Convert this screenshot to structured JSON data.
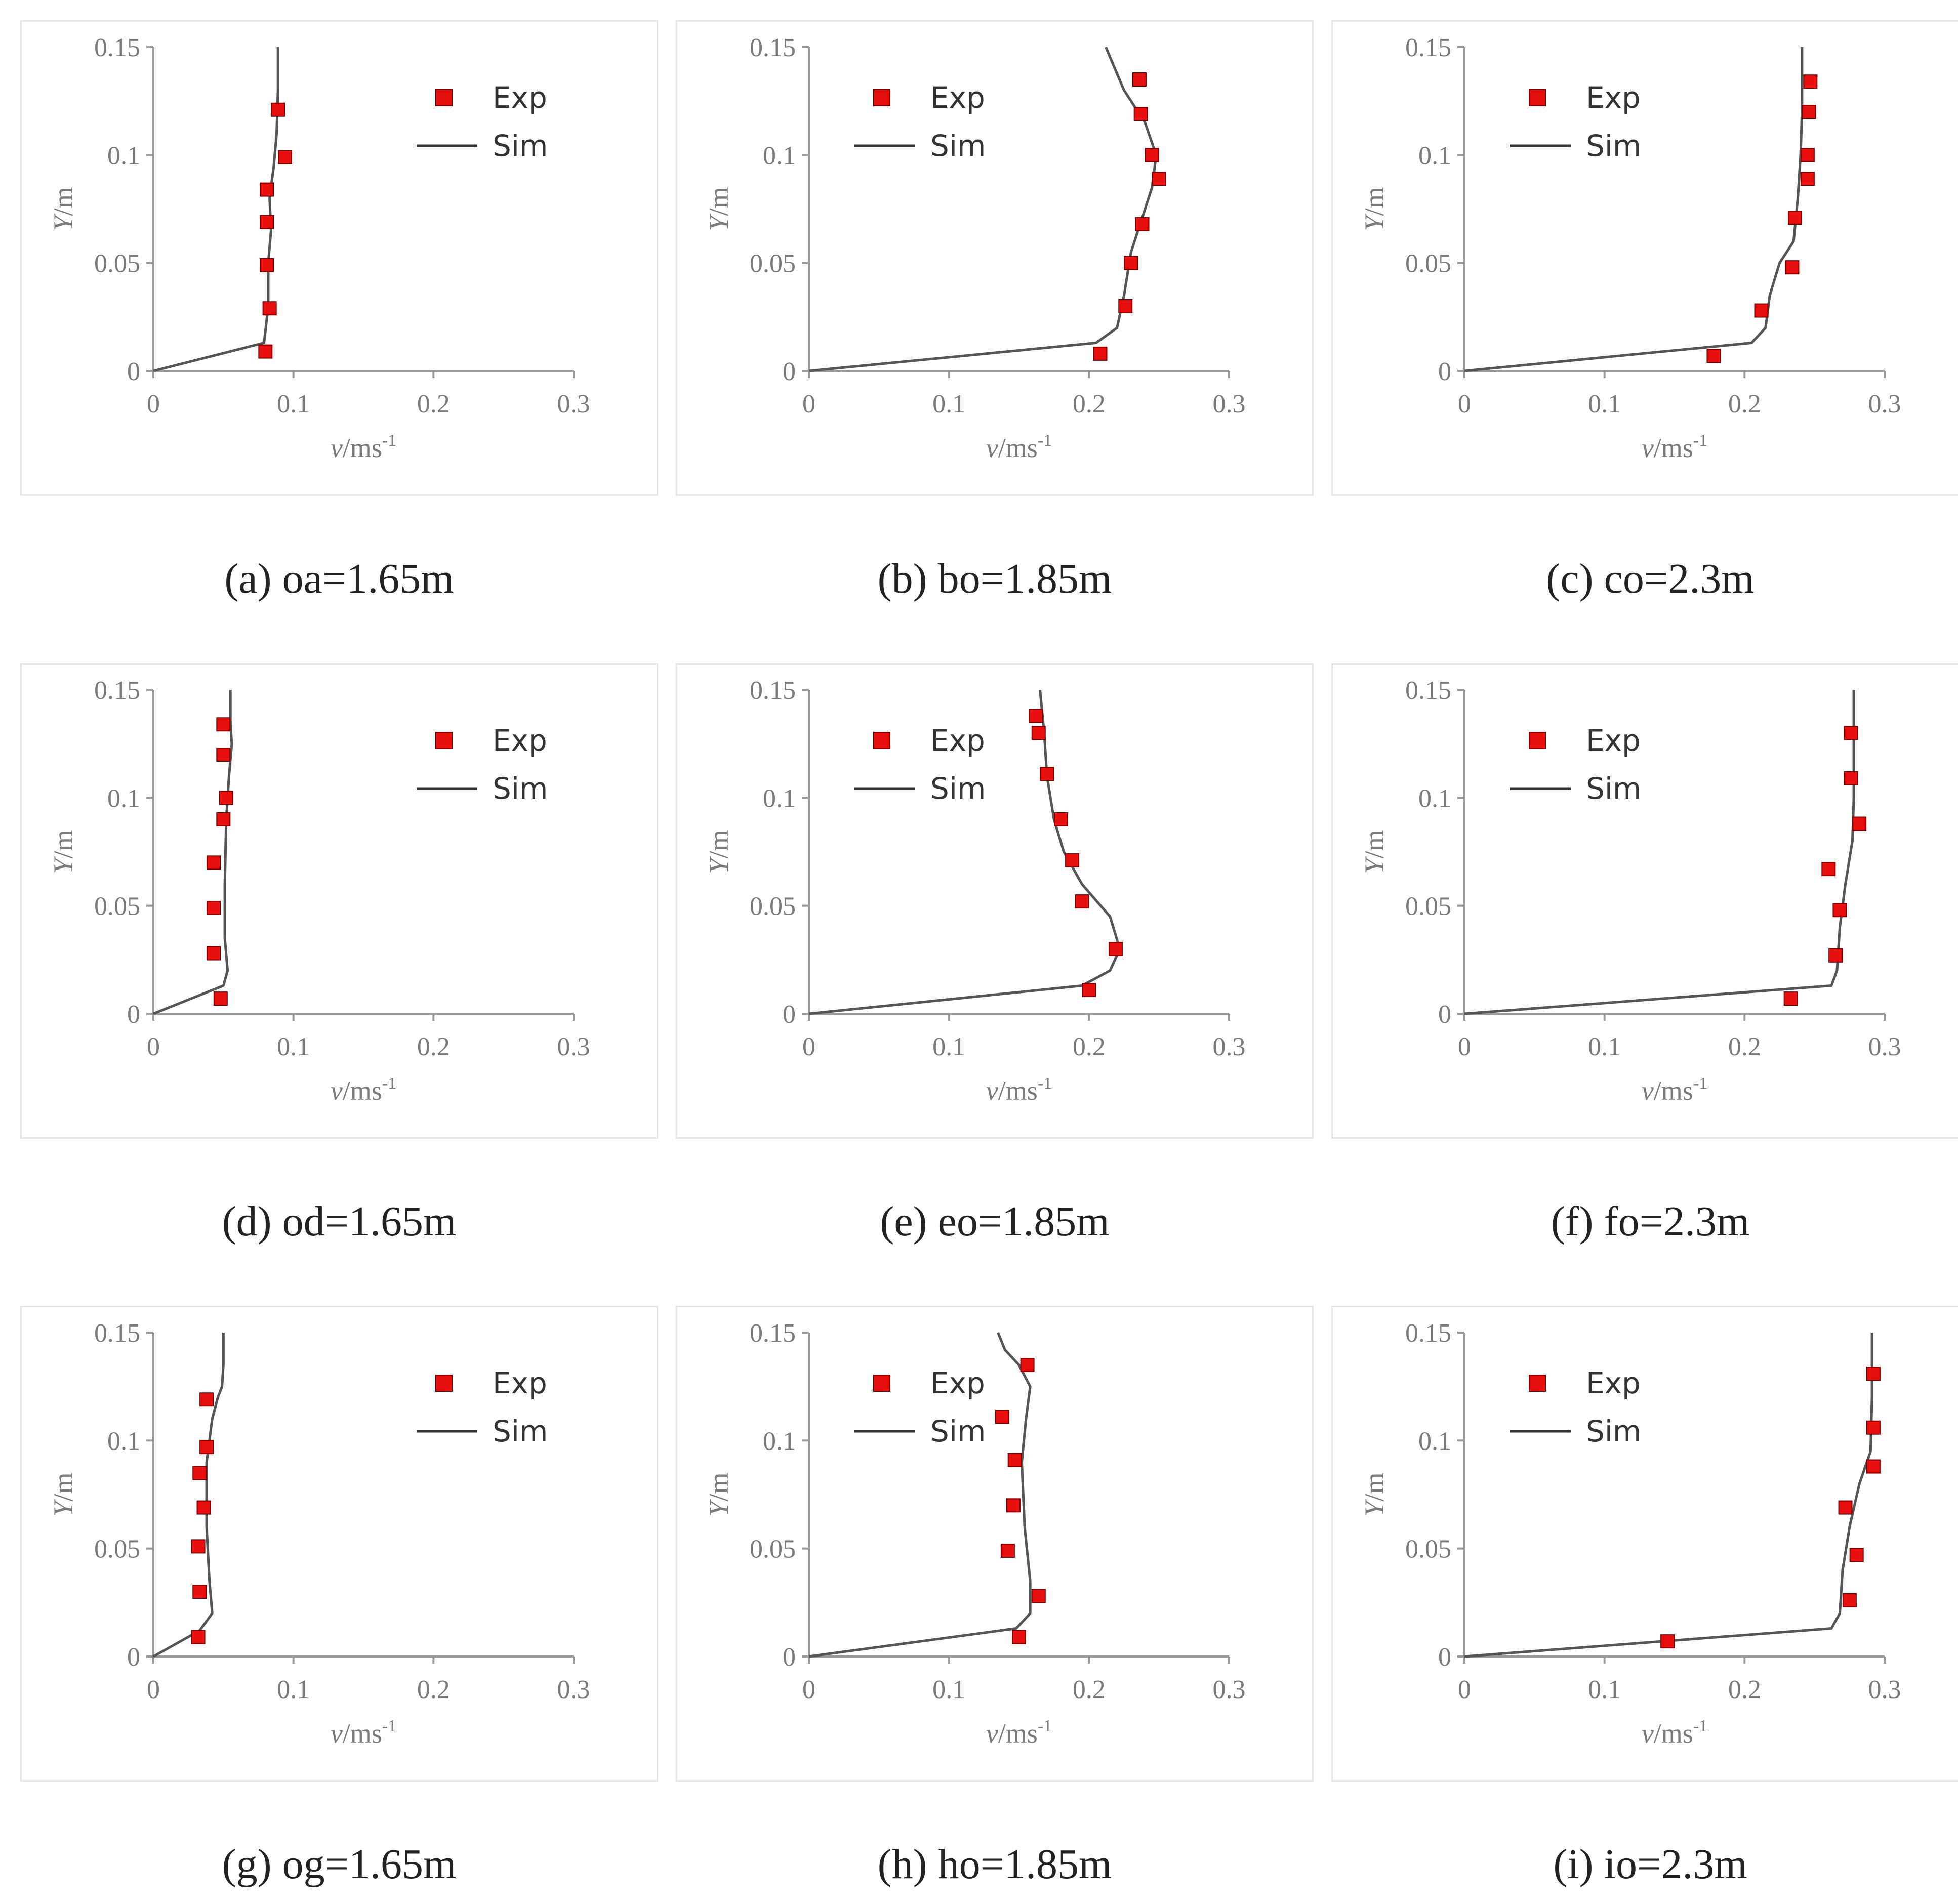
{
  "chart_data": [
    {
      "type": "scatter",
      "caption": "(a) oa=1.65m",
      "xlabel_italic": "v",
      "xlabel_unit": "/ms",
      "xlabel_sup": "-1",
      "ylabel_italic": "Y",
      "ylabel_unit": "/m",
      "xlim": [
        0,
        0.3
      ],
      "ylim": [
        0,
        0.15
      ],
      "xticks": [
        "0",
        "0.1",
        "0.2",
        "0.3"
      ],
      "yticks": [
        "0",
        "0.05",
        "0.1",
        "0.15"
      ],
      "legend": {
        "position": "top-right",
        "exp": "Exp",
        "sim": "Sim"
      },
      "series": [
        {
          "name": "Exp",
          "x": [
            0.08,
            0.083,
            0.081,
            0.081,
            0.081,
            0.094,
            0.089
          ],
          "y": [
            0.009,
            0.029,
            0.049,
            0.069,
            0.084,
            0.099,
            0.121
          ]
        },
        {
          "name": "Sim",
          "x": [
            0,
            0.079,
            0.082,
            0.082,
            0.084,
            0.083,
            0.086,
            0.088,
            0.089,
            0.089
          ],
          "y": [
            0,
            0.013,
            0.03,
            0.05,
            0.065,
            0.08,
            0.095,
            0.11,
            0.13,
            0.15
          ]
        }
      ]
    },
    {
      "type": "scatter",
      "caption": "(b) bo=1.85m",
      "xlabel_italic": "v",
      "xlabel_unit": "/ms",
      "xlabel_sup": "-1",
      "ylabel_italic": "Y",
      "ylabel_unit": "/m",
      "xlim": [
        0,
        0.3
      ],
      "ylim": [
        0,
        0.15
      ],
      "xticks": [
        "0",
        "0.1",
        "0.2",
        "0.3"
      ],
      "yticks": [
        "0",
        "0.05",
        "0.1",
        "0.15"
      ],
      "legend": {
        "position": "top-left",
        "exp": "Exp",
        "sim": "Sim"
      },
      "series": [
        {
          "name": "Exp",
          "x": [
            0.208,
            0.226,
            0.23,
            0.238,
            0.25,
            0.245,
            0.237,
            0.236
          ],
          "y": [
            0.008,
            0.03,
            0.05,
            0.068,
            0.089,
            0.1,
            0.119,
            0.135
          ]
        },
        {
          "name": "Sim",
          "x": [
            0,
            0.205,
            0.22,
            0.225,
            0.23,
            0.24,
            0.245,
            0.248,
            0.24,
            0.225,
            0.212
          ],
          "y": [
            0,
            0.013,
            0.02,
            0.035,
            0.055,
            0.075,
            0.085,
            0.1,
            0.115,
            0.13,
            0.15
          ]
        }
      ]
    },
    {
      "type": "scatter",
      "caption": "(c) co=2.3m",
      "xlabel_italic": "v",
      "xlabel_unit": "/ms",
      "xlabel_sup": "-1",
      "ylabel_italic": "Y",
      "ylabel_unit": "/m",
      "xlim": [
        0,
        0.3
      ],
      "ylim": [
        0,
        0.15
      ],
      "xticks": [
        "0",
        "0.1",
        "0.2",
        "0.3"
      ],
      "yticks": [
        "0",
        "0.05",
        "0.1",
        "0.15"
      ],
      "legend": {
        "position": "top-left",
        "exp": "Exp",
        "sim": "Sim"
      },
      "series": [
        {
          "name": "Exp",
          "x": [
            0.178,
            0.212,
            0.234,
            0.236,
            0.245,
            0.245,
            0.246,
            0.247
          ],
          "y": [
            0.007,
            0.028,
            0.048,
            0.071,
            0.089,
            0.1,
            0.12,
            0.134
          ]
        },
        {
          "name": "Sim",
          "x": [
            0,
            0.205,
            0.215,
            0.218,
            0.225,
            0.235,
            0.238,
            0.24,
            0.241,
            0.241
          ],
          "y": [
            0,
            0.013,
            0.02,
            0.035,
            0.05,
            0.06,
            0.08,
            0.1,
            0.12,
            0.15
          ]
        }
      ]
    },
    {
      "type": "scatter",
      "caption": "(d) od=1.65m",
      "xlabel_italic": "v",
      "xlabel_unit": "/ms",
      "xlabel_sup": "-1",
      "ylabel_italic": "Y",
      "ylabel_unit": "/m",
      "xlim": [
        0,
        0.3
      ],
      "ylim": [
        0,
        0.15
      ],
      "xticks": [
        "0",
        "0.1",
        "0.2",
        "0.3"
      ],
      "yticks": [
        "0",
        "0.05",
        "0.1",
        "0.15"
      ],
      "legend": {
        "position": "top-right",
        "exp": "Exp",
        "sim": "Sim"
      },
      "series": [
        {
          "name": "Exp",
          "x": [
            0.048,
            0.043,
            0.043,
            0.043,
            0.05,
            0.052,
            0.05,
            0.05
          ],
          "y": [
            0.007,
            0.028,
            0.049,
            0.07,
            0.09,
            0.1,
            0.12,
            0.134
          ]
        },
        {
          "name": "Sim",
          "x": [
            0,
            0.05,
            0.053,
            0.051,
            0.051,
            0.052,
            0.054,
            0.056,
            0.055,
            0.055
          ],
          "y": [
            0,
            0.013,
            0.02,
            0.035,
            0.06,
            0.09,
            0.11,
            0.125,
            0.135,
            0.15
          ]
        }
      ]
    },
    {
      "type": "scatter",
      "caption": "(e) eo=1.85m",
      "xlabel_italic": "v",
      "xlabel_unit": "/ms",
      "xlabel_sup": "-1",
      "ylabel_italic": "Y",
      "ylabel_unit": "/m",
      "xlim": [
        0,
        0.3
      ],
      "ylim": [
        0,
        0.15
      ],
      "xticks": [
        "0",
        "0.1",
        "0.2",
        "0.3"
      ],
      "yticks": [
        "0",
        "0.05",
        "0.1",
        "0.15"
      ],
      "legend": {
        "position": "top-left",
        "exp": "Exp",
        "sim": "Sim"
      },
      "series": [
        {
          "name": "Exp",
          "x": [
            0.2,
            0.219,
            0.195,
            0.188,
            0.18,
            0.17,
            0.164,
            0.162
          ],
          "y": [
            0.011,
            0.03,
            0.052,
            0.071,
            0.09,
            0.111,
            0.13,
            0.138
          ]
        },
        {
          "name": "Sim",
          "x": [
            0,
            0.195,
            0.215,
            0.222,
            0.215,
            0.195,
            0.182,
            0.175,
            0.17,
            0.168,
            0.165
          ],
          "y": [
            0,
            0.013,
            0.02,
            0.03,
            0.045,
            0.06,
            0.075,
            0.09,
            0.11,
            0.13,
            0.15
          ]
        }
      ]
    },
    {
      "type": "scatter",
      "caption": "(f) fo=2.3m",
      "xlabel_italic": "v",
      "xlabel_unit": "/ms",
      "xlabel_sup": "-1",
      "ylabel_italic": "Y",
      "ylabel_unit": "/m",
      "xlim": [
        0,
        0.3
      ],
      "ylim": [
        0,
        0.15
      ],
      "xticks": [
        "0",
        "0.1",
        "0.2",
        "0.3"
      ],
      "yticks": [
        "0",
        "0.05",
        "0.1",
        "0.15"
      ],
      "legend": {
        "position": "top-left",
        "exp": "Exp",
        "sim": "Sim"
      },
      "series": [
        {
          "name": "Exp",
          "x": [
            0.233,
            0.265,
            0.268,
            0.26,
            0.282,
            0.276,
            0.276
          ],
          "y": [
            0.007,
            0.027,
            0.048,
            0.067,
            0.088,
            0.109,
            0.13
          ]
        },
        {
          "name": "Sim",
          "x": [
            0,
            0.262,
            0.266,
            0.268,
            0.272,
            0.277,
            0.278,
            0.278,
            0.278
          ],
          "y": [
            0,
            0.013,
            0.02,
            0.04,
            0.06,
            0.08,
            0.1,
            0.12,
            0.15
          ]
        }
      ]
    },
    {
      "type": "scatter",
      "caption": "(g) og=1.65m",
      "xlabel_italic": "v",
      "xlabel_unit": "/ms",
      "xlabel_sup": "-1",
      "ylabel_italic": "Y",
      "ylabel_unit": "/m",
      "xlim": [
        0,
        0.3
      ],
      "ylim": [
        0,
        0.15
      ],
      "xticks": [
        "0",
        "0.1",
        "0.2",
        "0.3"
      ],
      "yticks": [
        "0",
        "0.05",
        "0.1",
        "0.15"
      ],
      "legend": {
        "position": "top-right",
        "exp": "Exp",
        "sim": "Sim"
      },
      "series": [
        {
          "name": "Exp",
          "x": [
            0.032,
            0.033,
            0.032,
            0.036,
            0.033,
            0.038,
            0.038
          ],
          "y": [
            0.009,
            0.03,
            0.051,
            0.069,
            0.085,
            0.097,
            0.119
          ]
        },
        {
          "name": "Sim",
          "x": [
            0,
            0.033,
            0.042,
            0.04,
            0.038,
            0.038,
            0.042,
            0.046,
            0.049,
            0.05,
            0.05
          ],
          "y": [
            0,
            0.012,
            0.02,
            0.035,
            0.06,
            0.09,
            0.11,
            0.12,
            0.125,
            0.135,
            0.15
          ]
        }
      ]
    },
    {
      "type": "scatter",
      "caption": "(h) ho=1.85m",
      "xlabel_italic": "v",
      "xlabel_unit": "/ms",
      "xlabel_sup": "-1",
      "ylabel_italic": "Y",
      "ylabel_unit": "/m",
      "xlim": [
        0,
        0.3
      ],
      "ylim": [
        0,
        0.15
      ],
      "xticks": [
        "0",
        "0.1",
        "0.2",
        "0.3"
      ],
      "yticks": [
        "0",
        "0.05",
        "0.1",
        "0.15"
      ],
      "legend": {
        "position": "top-left",
        "exp": "Exp",
        "sim": "Sim"
      },
      "series": [
        {
          "name": "Exp",
          "x": [
            0.15,
            0.164,
            0.142,
            0.146,
            0.147,
            0.138,
            0.156
          ],
          "y": [
            0.009,
            0.028,
            0.049,
            0.07,
            0.091,
            0.111,
            0.135
          ]
        },
        {
          "name": "Sim",
          "x": [
            0,
            0.148,
            0.158,
            0.158,
            0.154,
            0.152,
            0.155,
            0.158,
            0.15,
            0.14,
            0.135
          ],
          "y": [
            0,
            0.013,
            0.02,
            0.035,
            0.06,
            0.09,
            0.11,
            0.125,
            0.135,
            0.142,
            0.15
          ]
        }
      ]
    },
    {
      "type": "scatter",
      "caption": "(i) io=2.3m",
      "xlabel_italic": "v",
      "xlabel_unit": "/ms",
      "xlabel_sup": "-1",
      "ylabel_italic": "Y",
      "ylabel_unit": "/m",
      "xlim": [
        0,
        0.3
      ],
      "ylim": [
        0,
        0.15
      ],
      "xticks": [
        "0",
        "0.1",
        "0.2",
        "0.3"
      ],
      "yticks": [
        "0",
        "0.05",
        "0.1",
        "0.15"
      ],
      "legend": {
        "position": "top-left",
        "exp": "Exp",
        "sim": "Sim"
      },
      "series": [
        {
          "name": "Exp",
          "x": [
            0.145,
            0.275,
            0.28,
            0.272,
            0.292,
            0.292,
            0.292
          ],
          "y": [
            0.007,
            0.026,
            0.047,
            0.069,
            0.088,
            0.106,
            0.131
          ]
        },
        {
          "name": "Sim",
          "x": [
            0,
            0.262,
            0.268,
            0.27,
            0.275,
            0.282,
            0.29,
            0.291,
            0.291
          ],
          "y": [
            0,
            0.013,
            0.02,
            0.04,
            0.06,
            0.08,
            0.095,
            0.12,
            0.15
          ]
        }
      ]
    }
  ]
}
